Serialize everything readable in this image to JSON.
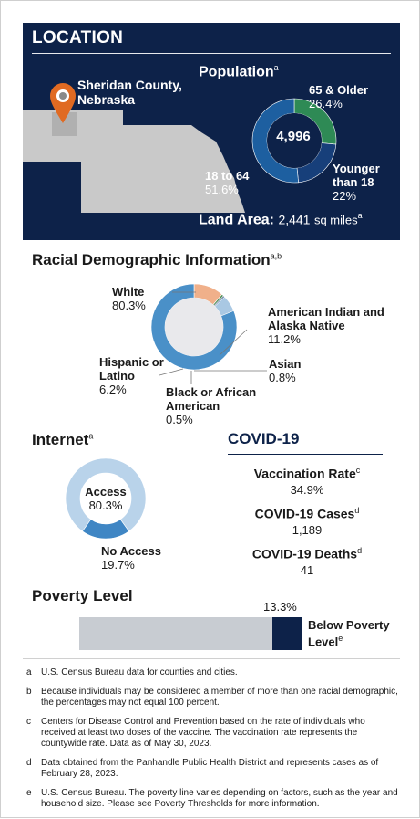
{
  "location": {
    "title": "LOCATION",
    "county": "Sheridan County, Nebraska",
    "population_title": "Population",
    "population_sup": "a",
    "population_total": "4,996",
    "land_area_label": "Land Area:",
    "land_area_value": "2,441",
    "land_area_unit": "sq miles",
    "land_area_sup": "a",
    "colors": {
      "panel": "#0d2249",
      "state": "#c9c9c9",
      "pin": "#e06a22"
    }
  },
  "racial": {
    "title": "Racial Demographic Information",
    "title_sup": "a,b"
  },
  "internet": {
    "title": "Internet",
    "title_sup": "a"
  },
  "covid": {
    "title": "COVID-19",
    "vaccination_label": "Vaccination Rate",
    "vaccination_sup": "c",
    "vaccination_value": "34.9%",
    "cases_label": "COVID-19 Cases",
    "cases_sup": "d",
    "cases_value": "1,189",
    "deaths_label": "COVID-19 Deaths",
    "deaths_sup": "d",
    "deaths_value": "41"
  },
  "poverty": {
    "title": "Poverty Level",
    "value_text": "13.3%",
    "label": "Below Poverty Level",
    "label_sup": "e"
  },
  "footnotes": [
    {
      "letter": "a",
      "text": "U.S. Census Bureau data for counties and cities."
    },
    {
      "letter": "b",
      "text": "Because individuals may be considered a member of more than one racial demographic, the percentages may not equal 100 percent."
    },
    {
      "letter": "c",
      "text": "Centers for Disease Control and Prevention based on the rate of individuals who received at least two doses of the vaccine. The vaccination rate represents the countywide rate. Data as of May 30, 2023."
    },
    {
      "letter": "d",
      "text": "Data obtained from the Panhandle Public Health District and represents cases as of February 28, 2023."
    },
    {
      "letter": "e",
      "text": "U.S. Census Bureau. The poverty line varies depending on factors, such as the year and household size. Please see Poverty Thresholds for more information."
    }
  ],
  "chart_data": [
    {
      "type": "pie",
      "title": "Population",
      "categories": [
        "Younger than 18",
        "18 to 64",
        "65 & Older"
      ],
      "values": [
        22,
        51.6,
        26.4
      ],
      "labels": [
        "Younger than 18",
        "18 to 64",
        "65 & Older"
      ],
      "value_text": [
        "22%",
        "51.6%",
        "26.4%"
      ],
      "colors": [
        "#173f7a",
        "#1d5fa0",
        "#2e8a55"
      ]
    },
    {
      "type": "pie",
      "title": "Racial Demographic Information",
      "categories": [
        "White",
        "American Indian and Alaska Native",
        "Asian",
        "Black or African American",
        "Hispanic or Latino"
      ],
      "values": [
        80.3,
        11.2,
        0.8,
        0.5,
        6.2
      ],
      "labels": [
        "White",
        "American Indian and Alaska Native",
        "Asian",
        "Black or African American",
        "Hispanic or Latino"
      ],
      "value_text": [
        "80.3%",
        "11.2%",
        "0.8%",
        "0.5%",
        "6.2%"
      ],
      "colors": [
        "#4a90c8",
        "#f0b08a",
        "#4e8a55",
        "#1d3f7a",
        "#a9c8e3"
      ]
    },
    {
      "type": "pie",
      "title": "Internet",
      "categories": [
        "Access",
        "No Access"
      ],
      "values": [
        80.3,
        19.7
      ],
      "labels": [
        "Access",
        "No Access"
      ],
      "value_text": [
        "80.3%",
        "19.7%"
      ],
      "colors": [
        "#b9d3ea",
        "#3f86c4"
      ]
    },
    {
      "type": "bar",
      "title": "Poverty Level",
      "categories": [
        "Below Poverty Level"
      ],
      "values": [
        13.3
      ],
      "ylim": [
        0,
        100
      ],
      "colors": [
        "#0d2249",
        "#c8ccd2"
      ]
    }
  ]
}
